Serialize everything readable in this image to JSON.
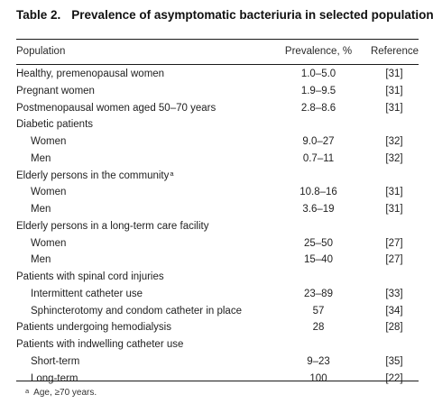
{
  "table": {
    "number": "Table 2.",
    "title": "Prevalence of asymptomatic bacteriuria in selected populations.",
    "headers": {
      "population": "Population",
      "prevalence": "Prevalence, %",
      "reference": "Reference"
    },
    "rows": [
      {
        "population": "Healthy, premenopausal women",
        "prevalence": "1.0–5.0",
        "reference": "[31]"
      },
      {
        "population": "Pregnant women",
        "prevalence": "1.9–9.5",
        "reference": "[31]"
      },
      {
        "population": "Postmenopausal women aged 50–70 years",
        "prevalence": "2.8–8.6",
        "reference": "[31]"
      },
      {
        "population": "Diabetic patients",
        "prevalence": "",
        "reference": ""
      },
      {
        "population": "Women",
        "prevalence": "9.0–27",
        "reference": "[32]"
      },
      {
        "population": "Men",
        "prevalence": "0.7–11",
        "reference": "[32]"
      },
      {
        "population": "Elderly persons in the community",
        "footnote_mark": "a",
        "prevalence": "",
        "reference": ""
      },
      {
        "population": "Women",
        "prevalence": "10.8–16",
        "reference": "[31]"
      },
      {
        "population": "Men",
        "prevalence": "3.6–19",
        "reference": "[31]"
      },
      {
        "population": "Elderly persons in a long-term care facility",
        "prevalence": "",
        "reference": ""
      },
      {
        "population": "Women",
        "prevalence": "25–50",
        "reference": "[27]"
      },
      {
        "population": "Men",
        "prevalence": "15–40",
        "reference": "[27]"
      },
      {
        "population": "Patients with spinal cord injuries",
        "prevalence": "",
        "reference": ""
      },
      {
        "population": "Intermittent catheter use",
        "prevalence": "23–89",
        "reference": "[33]"
      },
      {
        "population": "Sphincterotomy and condom catheter in place",
        "prevalence": "57",
        "reference": "[34]"
      },
      {
        "population": "Patients undergoing hemodialysis",
        "prevalence": "28",
        "reference": "[28]"
      },
      {
        "population": "Patients with indwelling catheter use",
        "prevalence": "",
        "reference": ""
      },
      {
        "population": "Short-term",
        "prevalence": "9–23",
        "reference": "[35]"
      },
      {
        "population": "Long-term",
        "prevalence": "100",
        "reference": "[22]"
      }
    ],
    "footnote": {
      "mark": "a",
      "text": "Age, ≥70 years."
    }
  }
}
